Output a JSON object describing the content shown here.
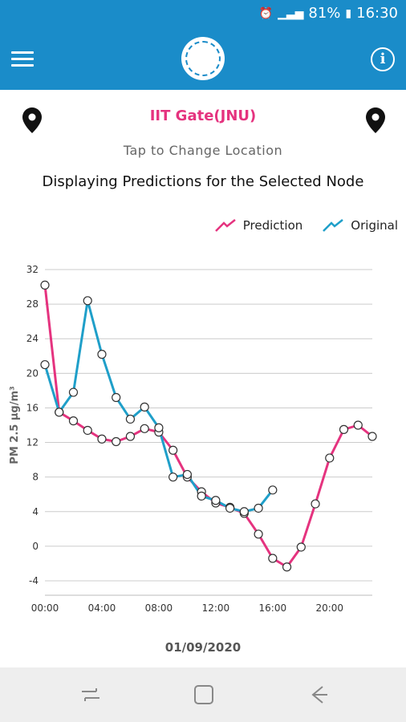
{
  "status_bar": {
    "battery": "81%",
    "time": "16:30"
  },
  "location": {
    "name": "IIT Gate(JNU)",
    "tap_hint": "Tap to Change Location"
  },
  "subtitle": "Displaying Predictions for the Selected Node",
  "legend": {
    "prediction": "Prediction",
    "original": "Original"
  },
  "colors": {
    "prediction": "#e5337f",
    "original": "#1f9fc9",
    "header": "#1a8cc9"
  },
  "date": "01/09/2020",
  "chart_data": {
    "type": "line",
    "ylabel": "PM 2.5 µg/m³",
    "ylim": [
      -4,
      32
    ],
    "yticks": [
      "32",
      "28",
      "24",
      "20",
      "16",
      "12",
      "8",
      "4",
      "0",
      "-4"
    ],
    "xlim": [
      0,
      23
    ],
    "xticks": [
      "00:00",
      "04:00",
      "08:00",
      "12:00",
      "16:00",
      "20:00"
    ],
    "grid": true,
    "legend_position": "top-right",
    "series": [
      {
        "name": "Prediction",
        "x": [
          0,
          1,
          2,
          3,
          4,
          5,
          6,
          7,
          8,
          9,
          10,
          11,
          12,
          13,
          14,
          15,
          16,
          17,
          18,
          19,
          20,
          21,
          22,
          23
        ],
        "values": [
          30.2,
          15.5,
          14.5,
          13.4,
          12.4,
          12.1,
          12.7,
          13.6,
          13.2,
          11.1,
          8.0,
          6.3,
          5.0,
          4.5,
          3.8,
          1.4,
          -1.4,
          -2.4,
          -0.1,
          4.9,
          10.2,
          13.5,
          14.0,
          12.7
        ]
      },
      {
        "name": "Original",
        "x": [
          0,
          1,
          2,
          3,
          4,
          5,
          6,
          7,
          8,
          9,
          10,
          11,
          12,
          13,
          14,
          15,
          16
        ],
        "values": [
          21.0,
          15.5,
          17.8,
          28.4,
          22.2,
          17.2,
          14.7,
          16.1,
          13.7,
          8.0,
          8.3,
          5.8,
          5.3,
          4.4,
          4.0,
          4.4,
          6.5
        ]
      }
    ]
  }
}
